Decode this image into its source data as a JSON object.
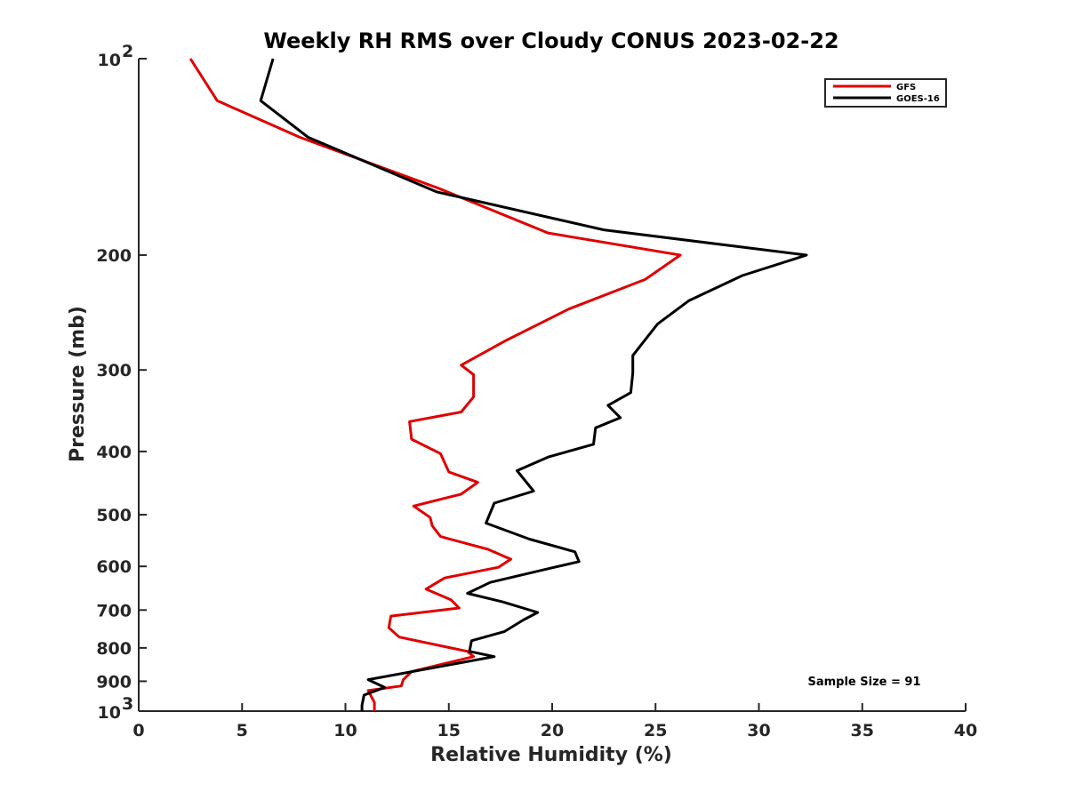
{
  "chart_data": {
    "type": "line",
    "title": "Weekly RH RMS over Cloudy CONUS 2023-02-22",
    "xlabel": "Relative Humidity (%)",
    "ylabel": "Pressure (mb)",
    "xlim": [
      0,
      40
    ],
    "ylim": [
      100,
      1000
    ],
    "y_scale": "log",
    "y_reversed": true,
    "grid": false,
    "legend_placement": "top-right",
    "x_ticks": [
      0,
      5,
      10,
      15,
      20,
      25,
      30,
      35,
      40
    ],
    "y_ticks": [
      {
        "value": 100,
        "base": "10",
        "exp": "2"
      },
      {
        "value": 200,
        "label": "200"
      },
      {
        "value": 300,
        "label": "300"
      },
      {
        "value": 400,
        "label": "400"
      },
      {
        "value": 500,
        "label": "500"
      },
      {
        "value": 600,
        "label": "600"
      },
      {
        "value": 700,
        "label": "700"
      },
      {
        "value": 800,
        "label": "800"
      },
      {
        "value": 900,
        "label": "900"
      },
      {
        "value": 1000,
        "base": "10",
        "exp": "3"
      }
    ],
    "annotation": "Sample Size = 91",
    "series": [
      {
        "name": "GFS",
        "color": "#e00000",
        "x": [
          2.5,
          3.8,
          7.8,
          14.5,
          19.8,
          26.2,
          24.5,
          20.8,
          17.8,
          15.6,
          16.2,
          16.2,
          15.6,
          13.1,
          13.2,
          14.6,
          15.0,
          16.4,
          15.6,
          13.3,
          14.1,
          14.2,
          14.6,
          16.9,
          18.0,
          17.4,
          14.8,
          13.9,
          15.1,
          15.5,
          12.2,
          12.1,
          12.6,
          15.9,
          16.2,
          14.5,
          13.2,
          12.8,
          12.7,
          11.1,
          11.4,
          11.4
        ],
        "y": [
          100,
          116,
          132,
          158,
          185,
          200,
          218,
          242,
          270,
          295,
          305,
          330,
          348,
          360,
          383,
          403,
          430,
          446,
          465,
          485,
          505,
          520,
          540,
          565,
          585,
          602,
          625,
          650,
          675,
          695,
          715,
          745,
          770,
          810,
          825,
          850,
          870,
          895,
          915,
          930,
          970,
          1000
        ]
      },
      {
        "name": "GOES-16",
        "color": "#000000",
        "x": [
          6.5,
          5.9,
          8.2,
          14.4,
          22.5,
          32.3,
          29.2,
          26.6,
          25.1,
          23.9,
          23.9,
          23.8,
          22.7,
          23.3,
          22.1,
          22.0,
          19.8,
          18.3,
          19.1,
          17.2,
          16.8,
          18.9,
          21.1,
          21.3,
          19.8,
          17.0,
          15.9,
          17.6,
          19.3,
          18.6,
          17.7,
          16.1,
          16.0,
          17.2,
          11.1,
          11.9,
          10.9,
          10.8,
          10.8
        ],
        "y": [
          100,
          116,
          132,
          160,
          183,
          200,
          215,
          235,
          255,
          285,
          303,
          325,
          340,
          355,
          368,
          390,
          408,
          428,
          460,
          480,
          515,
          545,
          570,
          590,
          605,
          635,
          660,
          680,
          706,
          725,
          755,
          780,
          810,
          825,
          895,
          920,
          945,
          980,
          1000
        ]
      }
    ]
  }
}
